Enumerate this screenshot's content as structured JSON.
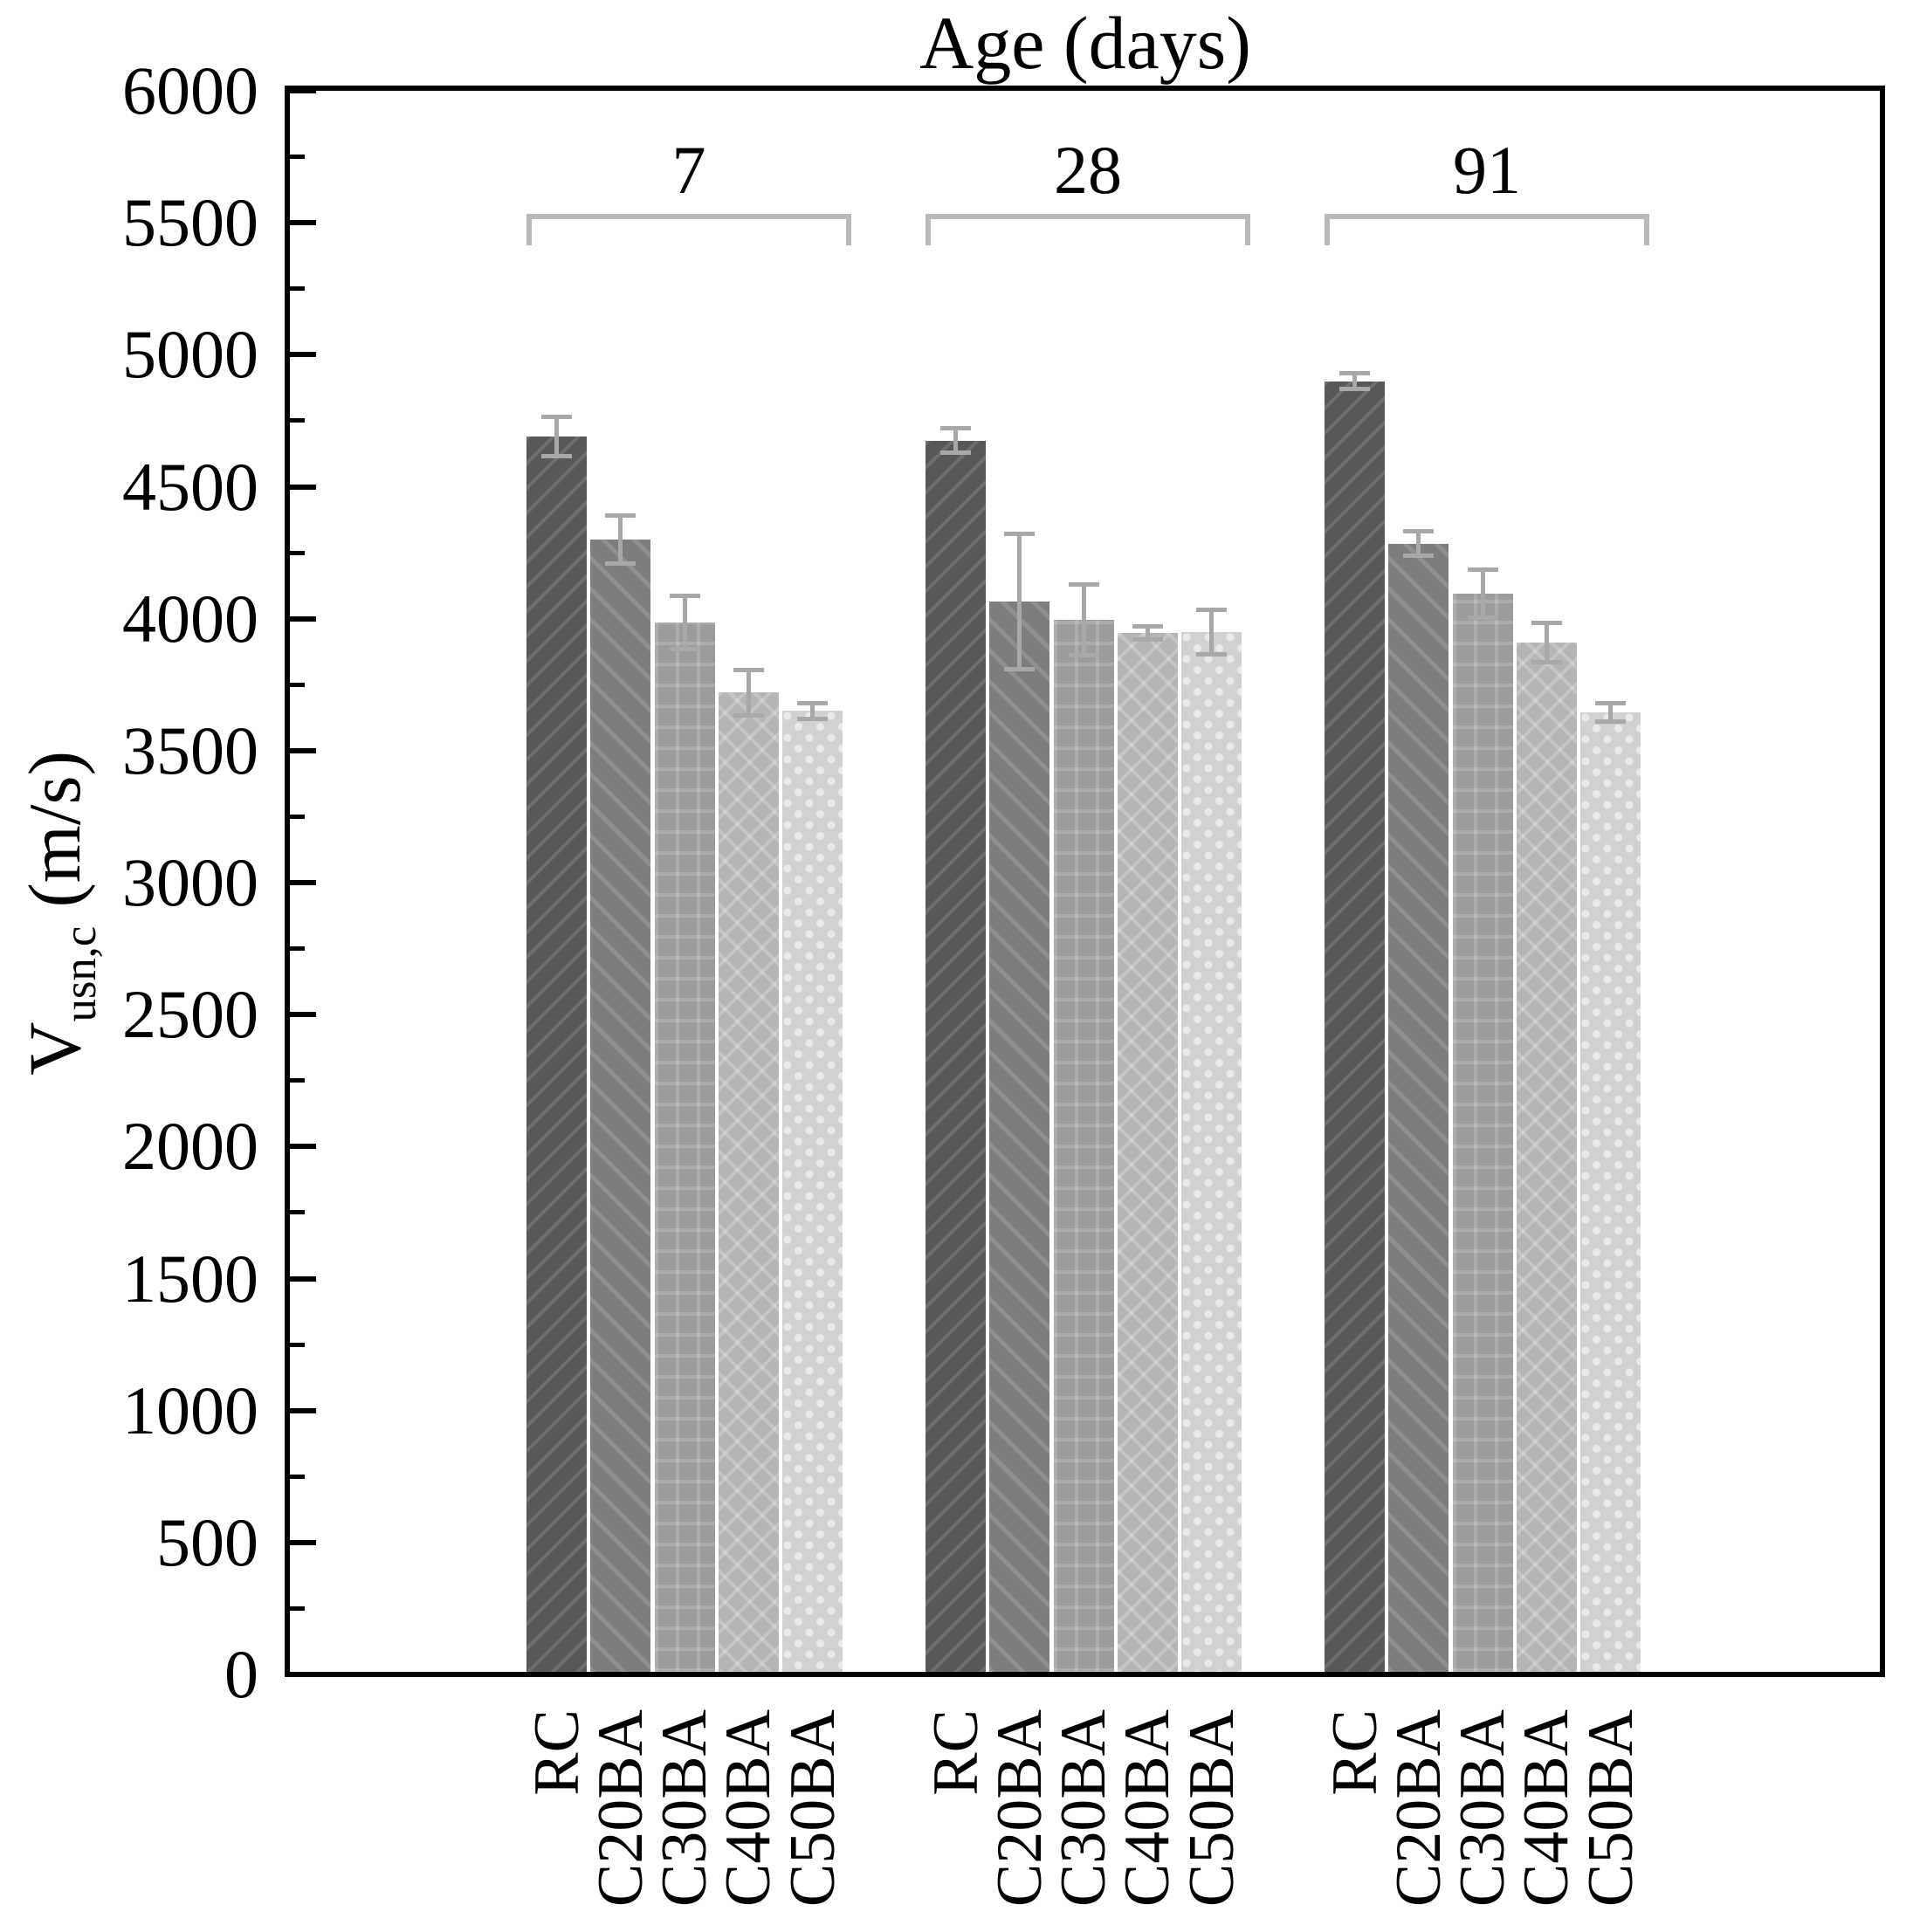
{
  "title": "Age (days)",
  "y_axis": {
    "label_v": "V",
    "label_sub": "usn,c",
    "label_unit": " (m/s)",
    "min": 0,
    "max": 6000,
    "major_step": 500,
    "minor_step": 250,
    "tick_labels": [
      "0",
      "500",
      "1000",
      "1500",
      "2000",
      "2500",
      "3000",
      "3500",
      "4000",
      "4500",
      "5000",
      "5500",
      "6000"
    ]
  },
  "chart_data": {
    "type": "bar",
    "title": "Age (days)",
    "ylabel": "V_usn,c (m/s)",
    "ylim": [
      0,
      6000
    ],
    "grid": false,
    "group_labels": [
      "7",
      "28",
      "91"
    ],
    "categories": [
      "RC",
      "C20BA",
      "C30BA",
      "C40BA",
      "C50BA"
    ],
    "series": [
      {
        "name": "7",
        "values": [
          4690,
          4300,
          3985,
          3720,
          3650
        ],
        "errors": [
          75,
          90,
          100,
          85,
          30
        ]
      },
      {
        "name": "28",
        "values": [
          4675,
          4065,
          3995,
          3945,
          3950
        ],
        "errors": [
          45,
          255,
          135,
          25,
          85
        ]
      },
      {
        "name": "91",
        "values": [
          4900,
          4285,
          4095,
          3910,
          3645
        ],
        "errors": [
          30,
          45,
          90,
          75,
          35
        ]
      }
    ]
  },
  "styles": {
    "bar_base_colors": [
      "#585858",
      "#7d7d7d",
      "#9c9c9c",
      "#b5b5b5",
      "#d1d1d1"
    ],
    "bar_pattern_colors": [
      "#6c6c6c",
      "#919191",
      "#ababab",
      "#c3c3c3",
      "#e2e2e2"
    ],
    "bar_patterns": [
      "diagonal-up",
      "diagonal-down",
      "grid",
      "diamond-crosshatch",
      "dots"
    ],
    "error_bar_color": "#a8a8a8",
    "bracket_color": "#b9b9b9",
    "axis_color": "#000000",
    "background_color": "#ffffff"
  }
}
